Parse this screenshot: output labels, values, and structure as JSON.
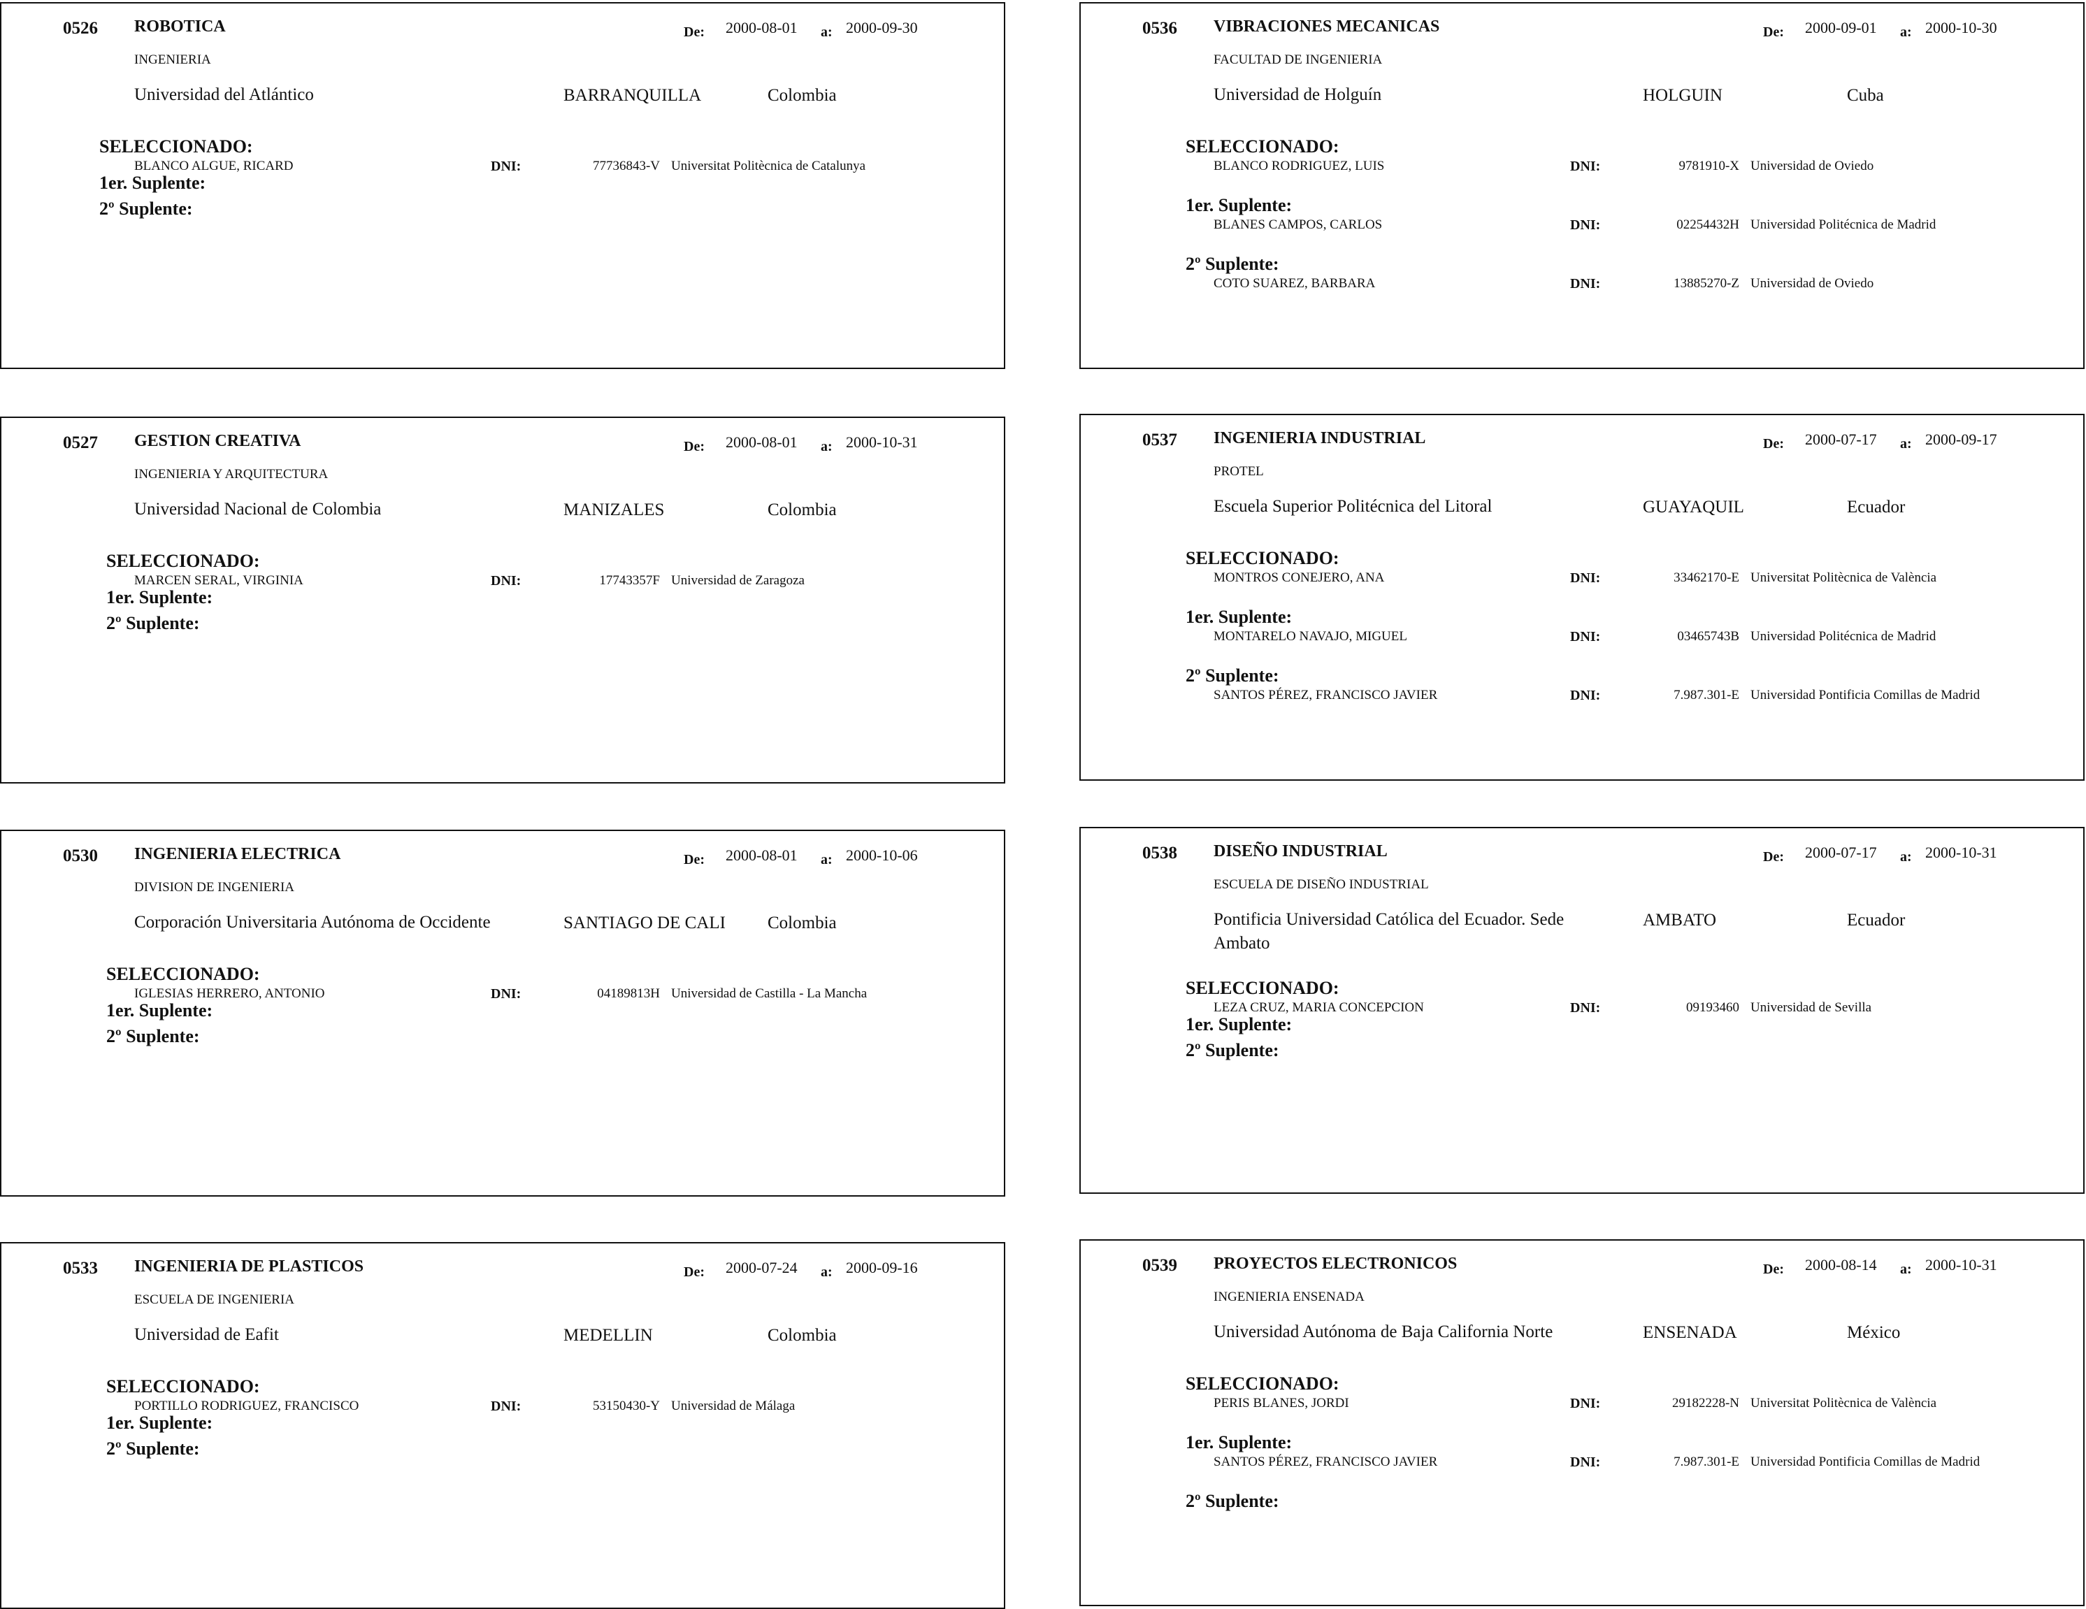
{
  "labels": {
    "from": "De:",
    "to": "a:",
    "selected": "SELECCIONADO:",
    "first_sub": "1er. Suplente:",
    "second_sub": "2º Suplente:",
    "dni": "DNI:"
  },
  "cards": [
    {
      "code": "0526",
      "title": "ROBOTICA",
      "from": "2000-08-01",
      "to": "2000-09-30",
      "faculty": "INGENIERIA",
      "university": "Universidad del Atlántico",
      "city": "BARRANQUILLA",
      "country": "Colombia",
      "selected": {
        "name": "BLANCO ALGUE, RICARD",
        "dni": "77736843-V",
        "univ": "Universitat Politècnica de Catalunya"
      },
      "first": {
        "name": "",
        "dni": "",
        "univ": ""
      },
      "second": {
        "name": "",
        "dni": "",
        "univ": ""
      }
    },
    {
      "code": "0536",
      "title": "VIBRACIONES MECANICAS",
      "from": "2000-09-01",
      "to": "2000-10-30",
      "faculty": "FACULTAD DE INGENIERIA",
      "university": "Universidad de Holguín",
      "city": "HOLGUIN",
      "country": "Cuba",
      "selected": {
        "name": "BLANCO RODRIGUEZ, LUIS",
        "dni": "9781910-X",
        "univ": "Universidad de Oviedo"
      },
      "first": {
        "name": "BLANES CAMPOS, CARLOS",
        "dni": "02254432H",
        "univ": "Universidad Politécnica de Madrid"
      },
      "second": {
        "name": "COTO SUAREZ, BARBARA",
        "dni": "13885270-Z",
        "univ": "Universidad de Oviedo"
      }
    },
    {
      "code": "0527",
      "title": "GESTION CREATIVA",
      "from": "2000-08-01",
      "to": "2000-10-31",
      "faculty": "INGENIERIA Y ARQUITECTURA",
      "university": "Universidad Nacional de Colombia",
      "city": "MANIZALES",
      "country": "Colombia",
      "selected": {
        "name": "MARCEN SERAL, VIRGINIA",
        "dni": "17743357F",
        "univ": "Universidad de Zaragoza"
      },
      "first": {
        "name": "",
        "dni": "",
        "univ": ""
      },
      "second": {
        "name": "",
        "dni": "",
        "univ": ""
      }
    },
    {
      "code": "0537",
      "title": "INGENIERIA INDUSTRIAL",
      "from": "2000-07-17",
      "to": "2000-09-17",
      "faculty": "PROTEL",
      "university": "Escuela Superior Politécnica del Litoral",
      "city": "GUAYAQUIL",
      "country": "Ecuador",
      "selected": {
        "name": "MONTROS CONEJERO, ANA",
        "dni": "33462170-E",
        "univ": "Universitat Politècnica de València"
      },
      "first": {
        "name": "MONTARELO NAVAJO, MIGUEL",
        "dni": "03465743B",
        "univ": "Universidad Politécnica de Madrid"
      },
      "second": {
        "name": "SANTOS PÉREZ, FRANCISCO JAVIER",
        "dni": "7.987.301-E",
        "univ": "Universidad Pontificia Comillas de Madrid"
      }
    },
    {
      "code": "0530",
      "title": "INGENIERIA ELECTRICA",
      "from": "2000-08-01",
      "to": "2000-10-06",
      "faculty": "DIVISION DE INGENIERIA",
      "university": "Corporación Universitaria Autónoma de Occidente",
      "city": "SANTIAGO DE CALI",
      "country": "Colombia",
      "selected": {
        "name": "IGLESIAS HERRERO, ANTONIO",
        "dni": "04189813H",
        "univ": "Universidad de Castilla - La Mancha"
      },
      "first": {
        "name": "",
        "dni": "",
        "univ": ""
      },
      "second": {
        "name": "",
        "dni": "",
        "univ": ""
      }
    },
    {
      "code": "0538",
      "title": "DISEÑO INDUSTRIAL",
      "from": "2000-07-17",
      "to": "2000-10-31",
      "faculty": "ESCUELA DE DISEÑO INDUSTRIAL",
      "university": "Pontificia Universidad Católica del Ecuador. Sede Ambato",
      "city": "AMBATO",
      "country": "Ecuador",
      "selected": {
        "name": "LEZA CRUZ, MARIA CONCEPCION",
        "dni": "09193460",
        "univ": "Universidad de Sevilla"
      },
      "first": {
        "name": "",
        "dni": "",
        "univ": ""
      },
      "second": {
        "name": "",
        "dni": "",
        "univ": ""
      }
    },
    {
      "code": "0533",
      "title": "INGENIERIA DE PLASTICOS",
      "from": "2000-07-24",
      "to": "2000-09-16",
      "faculty": "ESCUELA DE INGENIERIA",
      "university": "Universidad de Eafit",
      "city": "MEDELLIN",
      "country": "Colombia",
      "selected": {
        "name": "PORTILLO RODRIGUEZ, FRANCISCO",
        "dni": "53150430-Y",
        "univ": "Universidad de Málaga"
      },
      "first": {
        "name": "",
        "dni": "",
        "univ": ""
      },
      "second": {
        "name": "",
        "dni": "",
        "univ": ""
      }
    },
    {
      "code": "0539",
      "title": "PROYECTOS ELECTRONICOS",
      "from": "2000-08-14",
      "to": "2000-10-31",
      "faculty": "INGENIERIA ENSENADA",
      "university": "Universidad Autónoma de Baja California Norte",
      "city": "ENSENADA",
      "country": "México",
      "selected": {
        "name": "PERIS BLANES, JORDI",
        "dni": "29182228-N",
        "univ": "Universitat Politècnica de València"
      },
      "first": {
        "name": "SANTOS PÉREZ, FRANCISCO JAVIER",
        "dni": "7.987.301-E",
        "univ": "Universidad Pontificia Comillas de Madrid"
      },
      "second": {
        "name": "",
        "dni": "",
        "univ": ""
      }
    }
  ]
}
